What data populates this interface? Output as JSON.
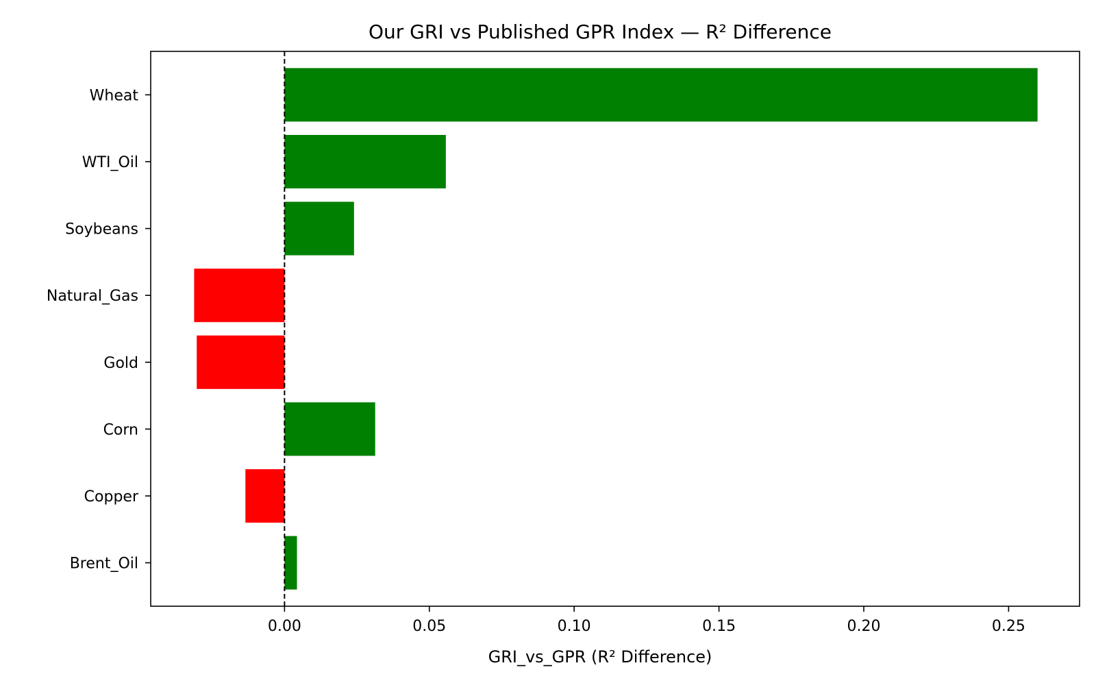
{
  "chart_data": {
    "type": "bar",
    "orientation": "horizontal",
    "title": "Our GRI vs Published GPR Index — R² Difference",
    "xlabel": "GRI_vs_GPR (R² Difference)",
    "ylabel": "",
    "categories": [
      "Wheat",
      "WTI_Oil",
      "Soybeans",
      "Natural_Gas",
      "Gold",
      "Corn",
      "Copper",
      "Brent_Oil"
    ],
    "values": [
      0.26,
      0.0557,
      0.024,
      -0.0312,
      -0.0303,
      0.0313,
      -0.0135,
      0.0043
    ],
    "xlim": [
      -0.0462,
      0.2745
    ],
    "xticks": [
      0.0,
      0.05,
      0.1,
      0.15,
      0.2,
      0.25
    ],
    "xtick_labels": [
      "0.00",
      "0.05",
      "0.10",
      "0.15",
      "0.20",
      "0.25"
    ],
    "positive_color": "#008000",
    "negative_color": "#ff0000",
    "reference_line": {
      "x": 0,
      "style": "dashed",
      "color": "#000000"
    },
    "grid": false,
    "legend": "none"
  }
}
